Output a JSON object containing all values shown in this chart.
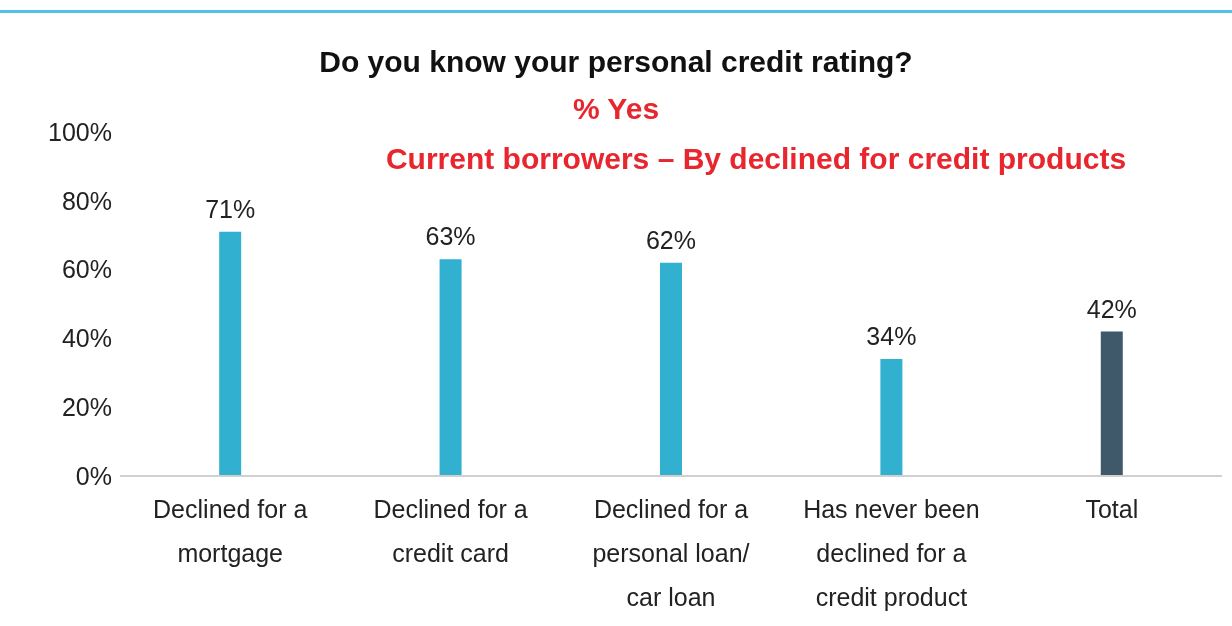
{
  "chart_data": {
    "type": "bar",
    "title": "Do you know your personal credit rating?",
    "subtitle": "% Yes\nCurrent borrowers – By declined for credit products",
    "categories": [
      "Declined for a mortgage",
      "Declined for a credit card",
      "Declined for a personal loan/ car loan",
      "Has never been declined for a credit product",
      "Total"
    ],
    "values": [
      71,
      63,
      62,
      34,
      42
    ],
    "colors": [
      "#31b0d0",
      "#31b0d0",
      "#31b0d0",
      "#31b0d0",
      "#40596a"
    ],
    "value_labels": [
      "71%",
      "63%",
      "62%",
      "34%",
      "42%"
    ],
    "ylim": [
      0,
      100
    ],
    "yticks": [
      {
        "value": 0,
        "label": "0%"
      },
      {
        "value": 20,
        "label": "20%"
      },
      {
        "value": 40,
        "label": "40%"
      },
      {
        "value": 60,
        "label": "60%"
      },
      {
        "value": 80,
        "label": "80%"
      },
      {
        "value": 100,
        "label": "100%"
      }
    ],
    "grid": false,
    "legend": false
  }
}
